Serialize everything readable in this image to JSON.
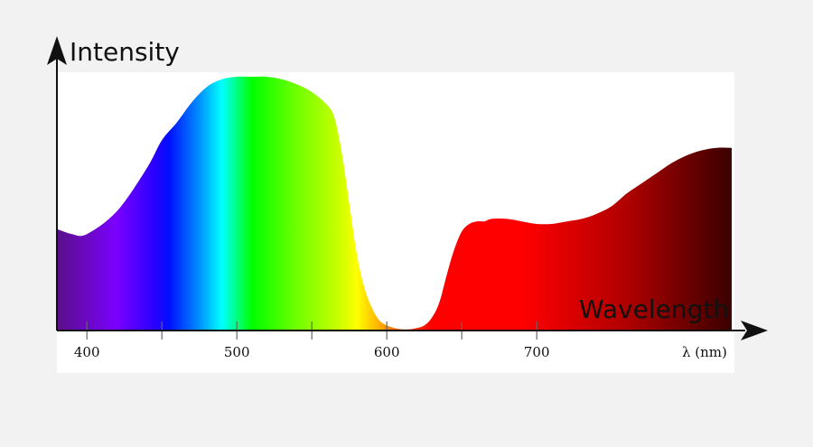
{
  "chart_data": {
    "type": "area",
    "title": "",
    "ylabel": "Intensity",
    "xlabel": "Wavelength",
    "x_unit_label": "λ (nm)",
    "xlim": [
      380,
      830
    ],
    "ylim": [
      0,
      1
    ],
    "x_ticks": [
      400,
      500,
      600,
      700
    ],
    "minor_ticks": [
      450,
      550,
      650
    ],
    "grid": false,
    "legend": "none",
    "series": [
      {
        "x": [
          380,
          390,
          400,
          420,
          440,
          450,
          460,
          470,
          480,
          490,
          500,
          510,
          520,
          530,
          540,
          550,
          560,
          565,
          570,
          575,
          580,
          585,
          590,
          595,
          600,
          605,
          610,
          615,
          620,
          625,
          630,
          635,
          640,
          645,
          650,
          655,
          660,
          665,
          670,
          680,
          690,
          700,
          710,
          720,
          730,
          740,
          750,
          760,
          770,
          780,
          790,
          800,
          810,
          820,
          830
        ],
        "y": [
          0.4,
          0.38,
          0.38,
          0.47,
          0.64,
          0.75,
          0.82,
          0.9,
          0.96,
          0.99,
          1.0,
          1.0,
          1.0,
          0.99,
          0.97,
          0.94,
          0.89,
          0.84,
          0.7,
          0.5,
          0.3,
          0.17,
          0.09,
          0.04,
          0.02,
          0.01,
          0.005,
          0.005,
          0.01,
          0.02,
          0.05,
          0.11,
          0.22,
          0.32,
          0.39,
          0.42,
          0.43,
          0.43,
          0.44,
          0.44,
          0.43,
          0.42,
          0.42,
          0.43,
          0.44,
          0.46,
          0.49,
          0.54,
          0.58,
          0.62,
          0.66,
          0.69,
          0.71,
          0.72,
          0.72
        ]
      }
    ],
    "spectrum_colors": [
      {
        "nm": 380,
        "color": "#5a1088"
      },
      {
        "nm": 420,
        "color": "#7a00ff"
      },
      {
        "nm": 445,
        "color": "#2a00ff"
      },
      {
        "nm": 455,
        "color": "#0010ff"
      },
      {
        "nm": 475,
        "color": "#0090ff"
      },
      {
        "nm": 490,
        "color": "#00ffff"
      },
      {
        "nm": 500,
        "color": "#00ff80"
      },
      {
        "nm": 510,
        "color": "#00ff00"
      },
      {
        "nm": 540,
        "color": "#70ff00"
      },
      {
        "nm": 570,
        "color": "#d0ff00"
      },
      {
        "nm": 580,
        "color": "#ffff00"
      },
      {
        "nm": 595,
        "color": "#ffb000"
      },
      {
        "nm": 610,
        "color": "#ff5000"
      },
      {
        "nm": 630,
        "color": "#ff0000"
      },
      {
        "nm": 690,
        "color": "#ff0000"
      },
      {
        "nm": 760,
        "color": "#b00000"
      },
      {
        "nm": 830,
        "color": "#3a0000"
      }
    ]
  }
}
